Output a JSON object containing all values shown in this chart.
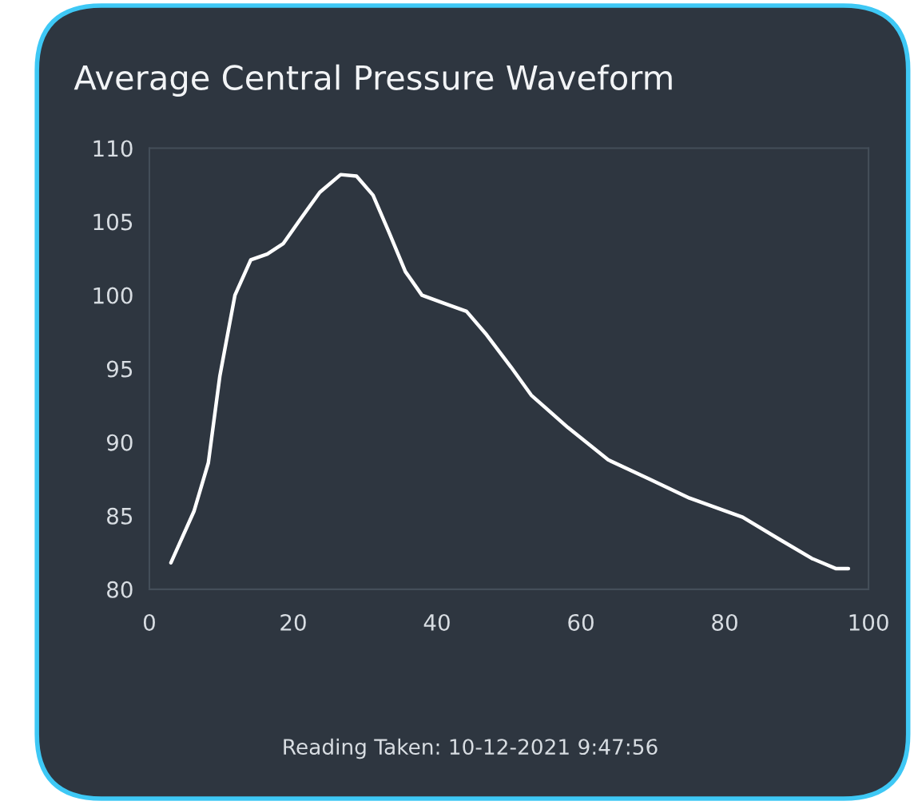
{
  "chart_data": {
    "type": "line",
    "title": "Average Central Pressure Waveform",
    "x": [
      3,
      6.2,
      8.2,
      9.8,
      11.9,
      14.1,
      16.4,
      18.6,
      20.9,
      23.7,
      26.6,
      28.8,
      31.1,
      33.3,
      35.6,
      37.9,
      40.7,
      44.1,
      46.9,
      50.3,
      53.1,
      58.2,
      63.8,
      69.5,
      75.1,
      82.5,
      87.6,
      92.1,
      95.5,
      97.2
    ],
    "series": [
      {
        "color": "#ffffff",
        "values": [
          81.8,
          85.3,
          88.6,
          94.5,
          100,
          102.4,
          102.8,
          103.5,
          105.1,
          107,
          108.2,
          108.1,
          106.8,
          104.3,
          101.6,
          100,
          99.5,
          98.9,
          97.3,
          95.1,
          93.2,
          91,
          88.8,
          87.5,
          86.2,
          84.9,
          83.4,
          82.1,
          81.4,
          81.4
        ]
      }
    ],
    "xlim": [
      0,
      100
    ],
    "xticks": [
      0,
      20,
      40,
      60,
      80,
      100
    ],
    "ylim": [
      80,
      110
    ],
    "yticks": [
      80,
      85,
      90,
      95,
      100,
      105,
      110
    ],
    "grid": false,
    "marker": "none",
    "line_style": "solid",
    "annotations": [
      "Reading Taken: 10-12-2021 9:47:56"
    ]
  }
}
